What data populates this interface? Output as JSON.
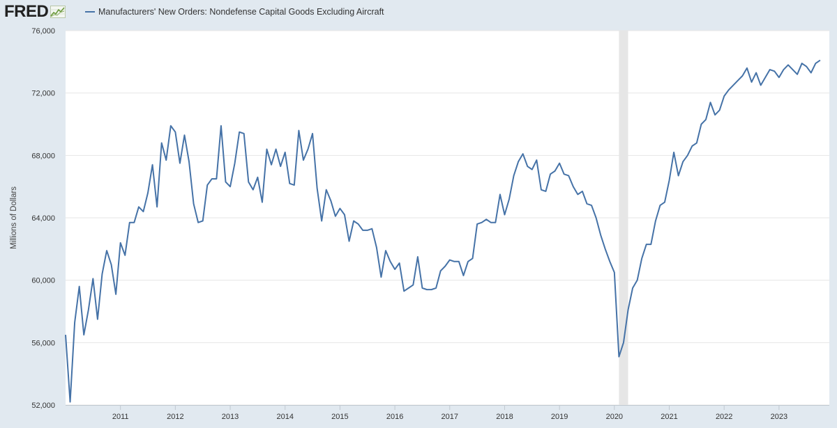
{
  "header": {
    "logo_text": "FRED",
    "logo_icon": "line-chart-icon"
  },
  "chart_data": {
    "type": "line",
    "title": "",
    "xlabel": "",
    "ylabel": "Millions of Dollars",
    "legend": "top-left",
    "grid": true,
    "ylim": [
      52000,
      76000
    ],
    "xlim": [
      "2010-01",
      "2023-12"
    ],
    "yticks": [
      52000,
      56000,
      60000,
      64000,
      68000,
      72000,
      76000
    ],
    "ytick_labels": [
      "52,000",
      "56,000",
      "60,000",
      "64,000",
      "68,000",
      "72,000",
      "76,000"
    ],
    "xticks": [
      "2011-01",
      "2012-01",
      "2013-01",
      "2014-01",
      "2015-01",
      "2016-01",
      "2017-01",
      "2018-01",
      "2019-01",
      "2020-01",
      "2021-01",
      "2022-01",
      "2023-01"
    ],
    "xtick_labels": [
      "2011",
      "2012",
      "2013",
      "2014",
      "2015",
      "2016",
      "2017",
      "2018",
      "2019",
      "2020",
      "2021",
      "2022",
      "2023"
    ],
    "recession": {
      "start": "2020-02",
      "end": "2020-04"
    },
    "series": [
      {
        "name": "Manufacturers' New Orders: Nondefense Capital Goods Excluding Aircraft",
        "color": "#4572a7",
        "start": "2010-01",
        "values": [
          56500,
          52200,
          57300,
          59600,
          56500,
          58100,
          60100,
          57500,
          60400,
          61900,
          61000,
          59100,
          62400,
          61600,
          63700,
          63700,
          64700,
          64400,
          65600,
          67400,
          64700,
          68800,
          67700,
          69900,
          69500,
          67500,
          69300,
          67600,
          64900,
          63700,
          63800,
          66100,
          66500,
          66500,
          69900,
          66300,
          66000,
          67500,
          69500,
          69400,
          66300,
          65800,
          66600,
          65000,
          68400,
          67400,
          68400,
          67300,
          68200,
          66200,
          66100,
          69600,
          67700,
          68400,
          69400,
          65900,
          63800,
          65800,
          65100,
          64100,
          64600,
          64200,
          62500,
          63800,
          63600,
          63200,
          63200,
          63300,
          62100,
          60200,
          61900,
          61200,
          60700,
          61100,
          59300,
          59500,
          59700,
          61500,
          59500,
          59400,
          59400,
          59500,
          60600,
          60900,
          61300,
          61200,
          61200,
          60300,
          61200,
          61400,
          63600,
          63700,
          63900,
          63700,
          63700,
          65500,
          64200,
          65200,
          66700,
          67600,
          68100,
          67300,
          67100,
          67700,
          65800,
          65700,
          66800,
          67000,
          67500,
          66800,
          66700,
          66000,
          65500,
          65700,
          64900,
          64800,
          64000,
          62900,
          62000,
          61200,
          60500,
          55100,
          56000,
          58100,
          59500,
          60000,
          61400,
          62300,
          62300,
          63800,
          64800,
          65000,
          66400,
          68200,
          66700,
          67600,
          68000,
          68600,
          68800,
          70000,
          70300,
          71400,
          70600,
          70900,
          71800,
          72200,
          72500,
          72800,
          73100,
          73600,
          72700,
          73300,
          72500,
          73000,
          73500,
          73400,
          73000,
          73500,
          73800,
          73500,
          73200,
          73900,
          73700,
          73300,
          73900,
          74100
        ]
      }
    ]
  }
}
